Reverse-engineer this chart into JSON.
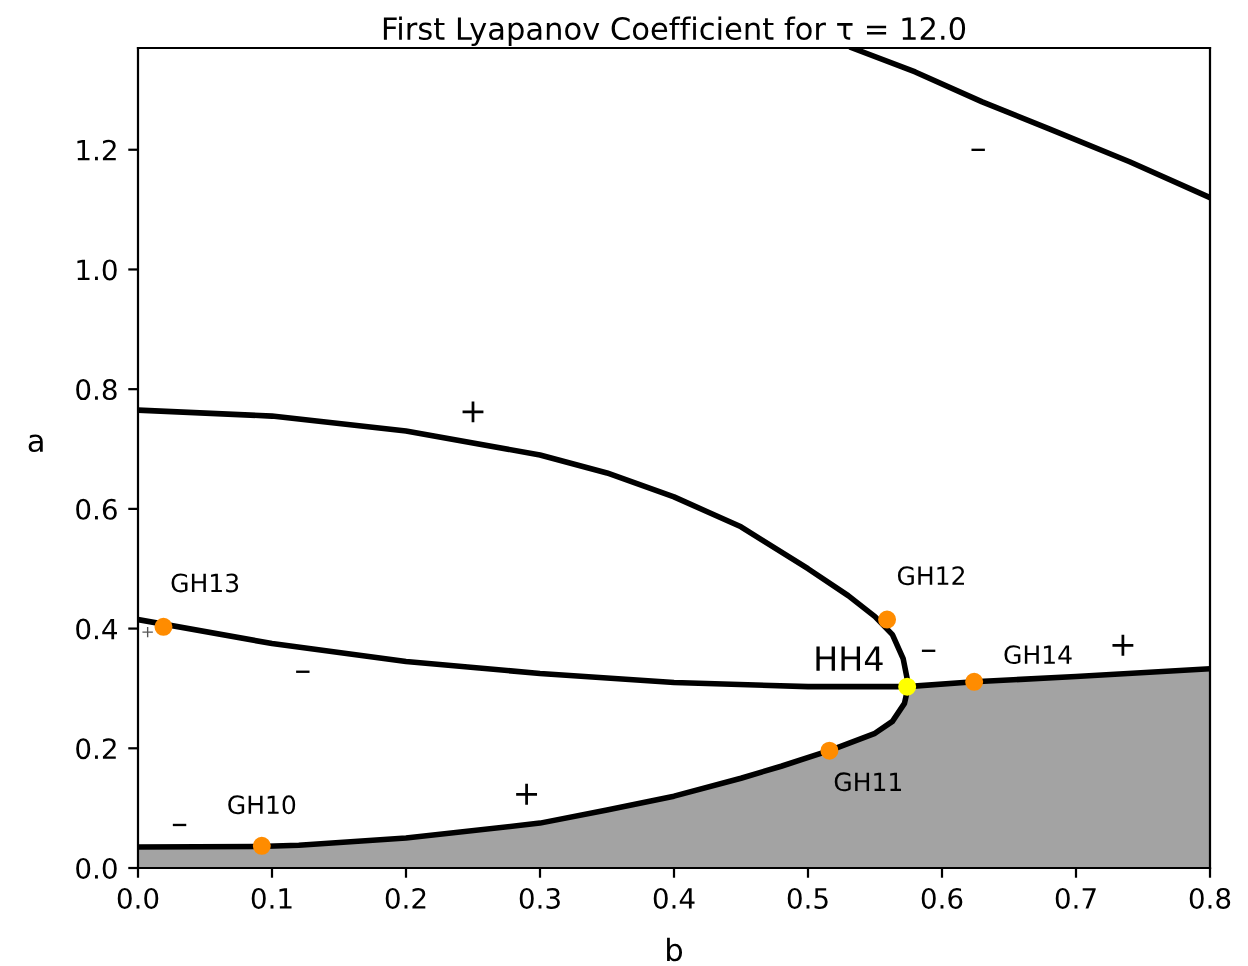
{
  "chart_data": {
    "type": "line",
    "title": "First Lyapanov Coefficient for τ = 12.0",
    "xlabel": "b",
    "ylabel": "a",
    "xlim": [
      0,
      0.8
    ],
    "ylim": [
      0,
      1.37
    ],
    "xticks": [
      {
        "value": 0,
        "label": "0.0"
      },
      0.1,
      0.2,
      0.3,
      0.4,
      0.5,
      0.6,
      0.7,
      0.8
    ],
    "yticks": [
      {
        "value": 0,
        "label": "0.0"
      },
      0.2,
      0.4,
      0.6,
      0.8,
      {
        "value": 1,
        "label": "1.0"
      },
      1.2
    ],
    "grid": false,
    "legend": false,
    "series": [
      {
        "type": "area",
        "color": "#a3a3a3",
        "x": [
          0,
          0.09,
          0.12,
          0.2,
          0.3,
          0.35,
          0.4,
          0.45,
          0.48,
          0.517,
          0.55,
          0.563,
          0.572,
          0.574,
          0.624,
          0.7,
          0.8
        ],
        "values": [
          0.035,
          0.036,
          0.038,
          0.05,
          0.075,
          0.097,
          0.12,
          0.15,
          0.17,
          0.197,
          0.225,
          0.245,
          0.275,
          0.303,
          0.311,
          0.32,
          0.333
        ]
      },
      {
        "color": "#000000",
        "x": [
          0.533,
          0.58,
          0.63,
          0.68,
          0.74,
          0.8
        ],
        "values": [
          1.37,
          1.33,
          1.28,
          1.235,
          1.18,
          1.12
        ]
      },
      {
        "color": "#000000",
        "x": [
          0,
          0.1,
          0.2,
          0.3,
          0.35,
          0.4,
          0.45,
          0.5,
          0.53,
          0.55,
          0.563,
          0.571,
          0.575,
          0.572,
          0.563,
          0.55,
          0.517,
          0.48,
          0.45,
          0.4,
          0.35,
          0.3,
          0.2,
          0.12,
          0.09,
          0
        ],
        "values": [
          0.765,
          0.755,
          0.73,
          0.69,
          0.66,
          0.62,
          0.57,
          0.5,
          0.455,
          0.42,
          0.39,
          0.35,
          0.305,
          0.275,
          0.245,
          0.225,
          0.197,
          0.17,
          0.15,
          0.12,
          0.097,
          0.075,
          0.05,
          0.038,
          0.036,
          0.035
        ]
      },
      {
        "color": "#000000",
        "x": [
          0,
          0.1,
          0.2,
          0.3,
          0.4,
          0.5,
          0.574,
          0.624,
          0.7,
          0.8
        ],
        "values": [
          0.415,
          0.375,
          0.345,
          0.325,
          0.31,
          0.303,
          0.303,
          0.311,
          0.32,
          0.333
        ]
      },
      {
        "type": "scatter",
        "color": "#ff8c00",
        "marker": "circle",
        "x": [
          0.0924,
          0.516,
          0.559,
          0.019,
          0.624
        ],
        "values": [
          0.037,
          0.196,
          0.415,
          0.403,
          0.311
        ]
      },
      {
        "type": "scatter",
        "color": "#ffff00",
        "marker": "circle",
        "x": [
          0.574
        ],
        "values": [
          0.303
        ]
      }
    ],
    "annotations": [
      {
        "text": "GH10",
        "x": 0.0924,
        "y": 0.037
      },
      {
        "text": "GH11",
        "x": 0.516,
        "y": 0.196
      },
      {
        "text": "GH12",
        "x": 0.559,
        "y": 0.415
      },
      {
        "text": "GH13",
        "x": 0.019,
        "y": 0.403
      },
      {
        "text": "GH14",
        "x": 0.624,
        "y": 0.311
      },
      {
        "text": "HH4",
        "x": 0.574,
        "y": 0.303
      },
      "+",
      "–",
      "+",
      "–",
      "–",
      "–",
      "+",
      "+"
    ]
  }
}
